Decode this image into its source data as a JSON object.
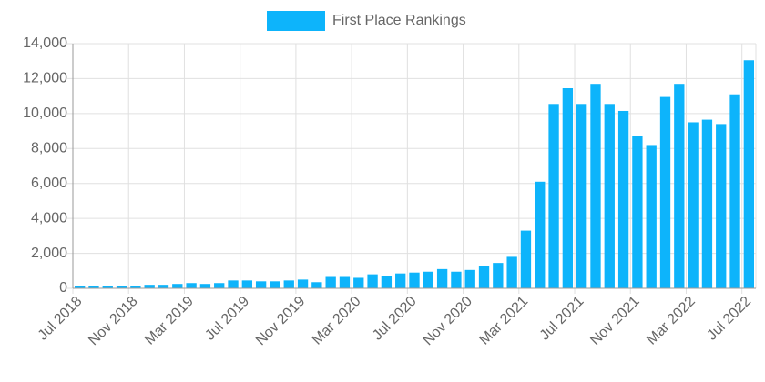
{
  "chart_data": {
    "type": "bar",
    "legend": "First Place Rankings",
    "legend_position": "top",
    "color": "#0db4fb",
    "categories": [
      "Jul 2018",
      null,
      null,
      null,
      "Nov 2018",
      null,
      null,
      null,
      "Mar 2019",
      null,
      null,
      null,
      "Jul 2019",
      null,
      null,
      null,
      "Nov 2019",
      null,
      null,
      null,
      "Mar 2020",
      null,
      null,
      null,
      "Jul 2020",
      null,
      null,
      null,
      "Nov 2020",
      null,
      null,
      null,
      "Mar 2021",
      null,
      null,
      null,
      "Jul 2021",
      null,
      null,
      null,
      "Nov 2021",
      null,
      null,
      null,
      "Mar 2022",
      null,
      null,
      null,
      "Jul 2022"
    ],
    "values": [
      150,
      150,
      150,
      150,
      150,
      200,
      200,
      250,
      300,
      250,
      300,
      450,
      450,
      400,
      400,
      450,
      500,
      350,
      650,
      650,
      600,
      800,
      700,
      850,
      900,
      950,
      1100,
      950,
      1050,
      1250,
      1450,
      1800,
      3300,
      6100,
      10550,
      11450,
      10550,
      11700,
      10550,
      10150,
      8700,
      8200,
      10950,
      11700,
      9500,
      9650,
      9400,
      11100,
      13050
    ],
    "ylim": [
      0,
      14000
    ],
    "yticks": [
      0,
      {
        "value": 2000,
        "label": "2,000"
      },
      {
        "value": 4000,
        "label": "4,000"
      },
      {
        "value": 6000,
        "label": "6,000"
      },
      {
        "value": 8000,
        "label": "8,000"
      },
      {
        "value": 10000,
        "label": "10,000"
      },
      {
        "value": 12000,
        "label": "12,000"
      },
      {
        "value": 14000,
        "label": "14,000"
      }
    ],
    "grid": true
  }
}
